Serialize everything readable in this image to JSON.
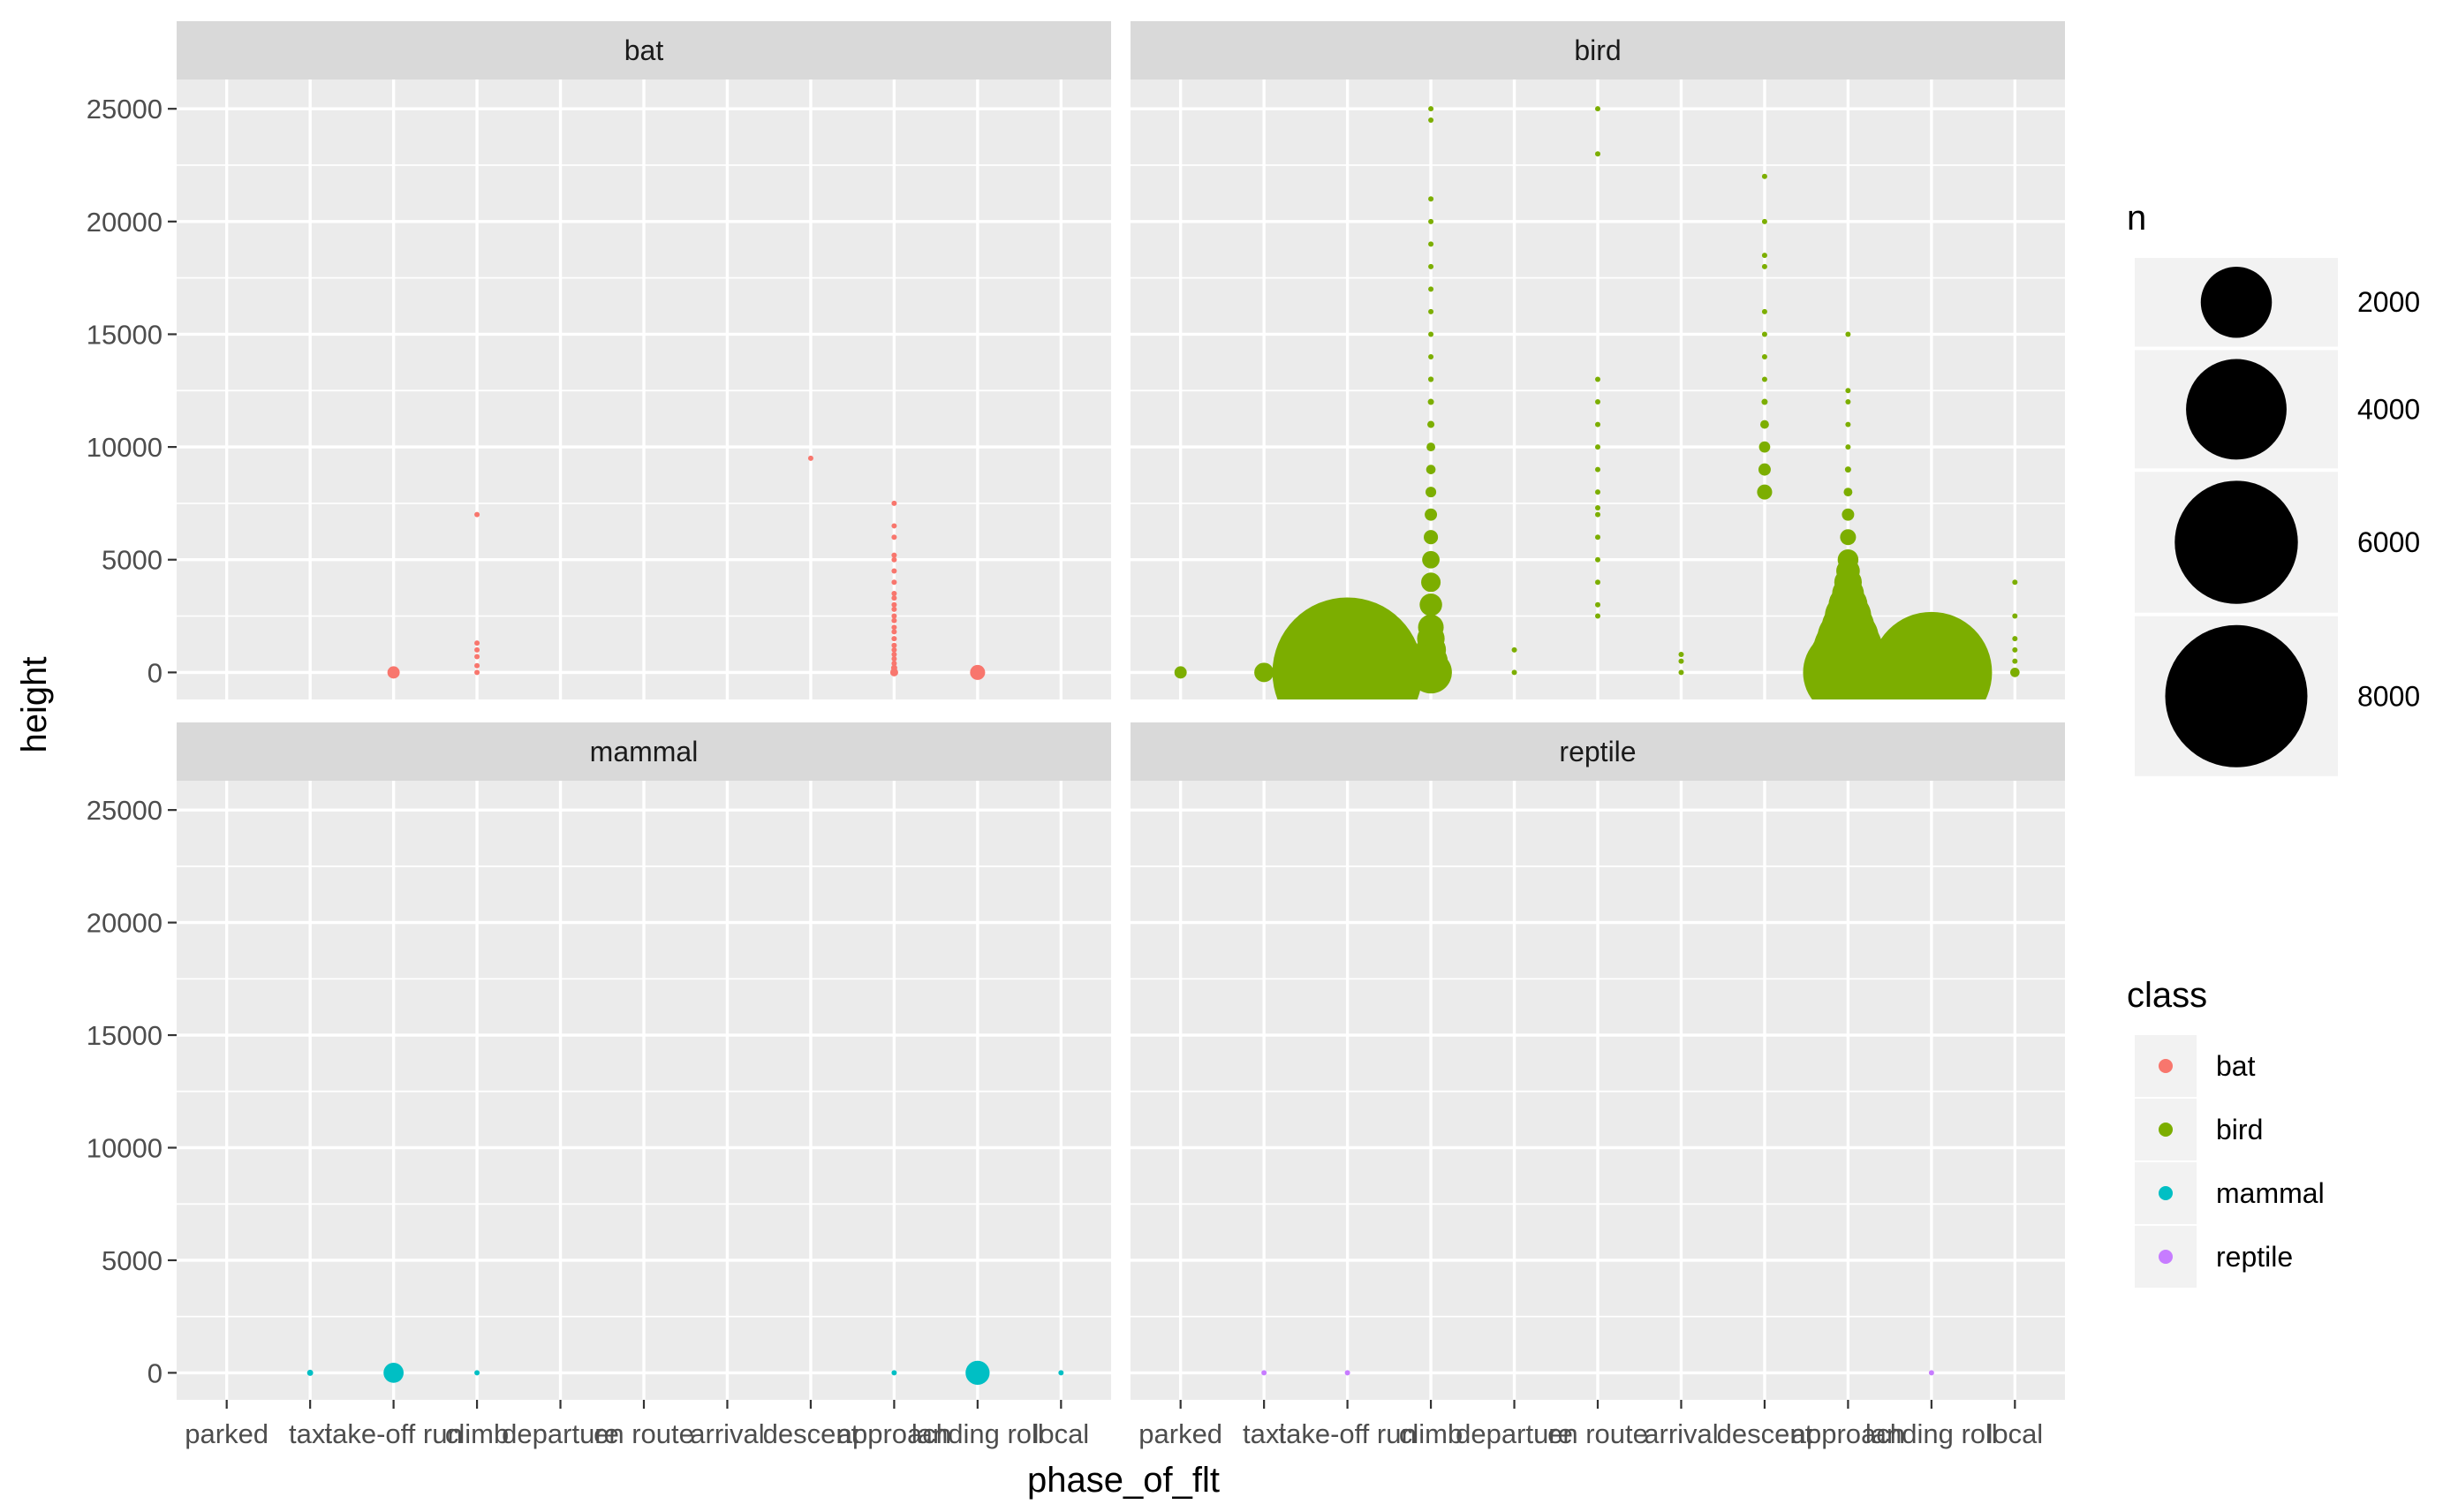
{
  "chart_data": {
    "type": "scatter",
    "facet_by": "class",
    "facets": [
      "bat",
      "bird",
      "mammal",
      "reptile"
    ],
    "xlabel": "phase_of_flt",
    "ylabel": "height",
    "x_categories": [
      "parked",
      "taxi",
      "take-off run",
      "climb",
      "departure",
      "en route",
      "arrival",
      "descent",
      "approach",
      "landing roll",
      "local"
    ],
    "x_tick_labels": [
      "parked",
      "taxi",
      "take-off run",
      "climb",
      "departure",
      "en route",
      "arrival",
      "descent",
      "approach",
      "landing roll",
      "local"
    ],
    "y_ticks": [
      0,
      5000,
      10000,
      15000,
      20000,
      25000
    ],
    "y_tick_labels": [
      "0",
      "5000",
      "10000",
      "15000",
      "20000",
      "25000"
    ],
    "ylim": [
      -1200,
      26300
    ],
    "grid": true,
    "legend_placement": "right",
    "size_legend": {
      "title": "n",
      "breaks": [
        2000,
        4000,
        6000,
        8000
      ],
      "labels": [
        "2000",
        "4000",
        "6000",
        "8000"
      ]
    },
    "color_legend": {
      "title": "class",
      "entries": [
        "bat",
        "bird",
        "mammal",
        "reptile"
      ]
    },
    "colors": {
      "bat": "#F8766D",
      "bird": "#7CAE00",
      "mammal": "#00BFC4",
      "reptile": "#C77CFF"
    },
    "series": [
      {
        "name": "bat",
        "points": [
          [
            "take-off run",
            0,
            60
          ],
          [
            "climb",
            0,
            3
          ],
          [
            "climb",
            300,
            2
          ],
          [
            "climb",
            700,
            2
          ],
          [
            "climb",
            1000,
            2
          ],
          [
            "climb",
            1300,
            2
          ],
          [
            "climb",
            7000,
            2
          ],
          [
            "descent",
            9500,
            2
          ],
          [
            "approach",
            0,
            25
          ],
          [
            "approach",
            200,
            15
          ],
          [
            "approach",
            400,
            10
          ],
          [
            "approach",
            600,
            8
          ],
          [
            "approach",
            800,
            6
          ],
          [
            "approach",
            1000,
            5
          ],
          [
            "approach",
            1200,
            4
          ],
          [
            "approach",
            1500,
            3
          ],
          [
            "approach",
            1800,
            3
          ],
          [
            "approach",
            2000,
            3
          ],
          [
            "approach",
            2300,
            2
          ],
          [
            "approach",
            2500,
            2
          ],
          [
            "approach",
            2800,
            2
          ],
          [
            "approach",
            3000,
            2
          ],
          [
            "approach",
            3300,
            2
          ],
          [
            "approach",
            3500,
            2
          ],
          [
            "approach",
            4000,
            2
          ],
          [
            "approach",
            4500,
            2
          ],
          [
            "approach",
            5000,
            2
          ],
          [
            "approach",
            5200,
            2
          ],
          [
            "approach",
            6000,
            2
          ],
          [
            "approach",
            6500,
            2
          ],
          [
            "approach",
            7500,
            2
          ],
          [
            "landing roll",
            0,
            90
          ]
        ]
      },
      {
        "name": "bird",
        "points": [
          [
            "parked",
            0,
            60
          ],
          [
            "taxi",
            0,
            150
          ],
          [
            "take-off run",
            0,
            8900
          ],
          [
            "climb",
            0,
            700
          ],
          [
            "climb",
            500,
            450
          ],
          [
            "climb",
            1000,
            360
          ],
          [
            "climb",
            1500,
            300
          ],
          [
            "climb",
            2000,
            260
          ],
          [
            "climb",
            3000,
            200
          ],
          [
            "climb",
            4000,
            150
          ],
          [
            "climb",
            5000,
            120
          ],
          [
            "climb",
            6000,
            80
          ],
          [
            "climb",
            7000,
            60
          ],
          [
            "climb",
            8000,
            45
          ],
          [
            "climb",
            9000,
            35
          ],
          [
            "climb",
            10000,
            30
          ],
          [
            "climb",
            11000,
            20
          ],
          [
            "climb",
            12000,
            15
          ],
          [
            "climb",
            13000,
            12
          ],
          [
            "climb",
            14000,
            8
          ],
          [
            "climb",
            15000,
            6
          ],
          [
            "climb",
            16000,
            5
          ],
          [
            "climb",
            17000,
            4
          ],
          [
            "climb",
            18000,
            3
          ],
          [
            "climb",
            19000,
            3
          ],
          [
            "climb",
            20000,
            3
          ],
          [
            "climb",
            21000,
            2
          ],
          [
            "climb",
            24500,
            2
          ],
          [
            "climb",
            25000,
            2
          ],
          [
            "departure",
            0,
            2
          ],
          [
            "departure",
            1000,
            2
          ],
          [
            "en route",
            2500,
            3
          ],
          [
            "en route",
            3000,
            3
          ],
          [
            "en route",
            4000,
            3
          ],
          [
            "en route",
            5000,
            3
          ],
          [
            "en route",
            6000,
            3
          ],
          [
            "en route",
            7000,
            3
          ],
          [
            "en route",
            7300,
            3
          ],
          [
            "en route",
            8000,
            3
          ],
          [
            "en route",
            9000,
            3
          ],
          [
            "en route",
            10000,
            5
          ],
          [
            "en route",
            11000,
            3
          ],
          [
            "en route",
            12000,
            3
          ],
          [
            "en route",
            13000,
            3
          ],
          [
            "en route",
            23000,
            2
          ],
          [
            "en route",
            25000,
            2
          ],
          [
            "arrival",
            0,
            4
          ],
          [
            "arrival",
            500,
            3
          ],
          [
            "arrival",
            800,
            3
          ],
          [
            "descent",
            8000,
            90
          ],
          [
            "descent",
            9000,
            60
          ],
          [
            "descent",
            10000,
            50
          ],
          [
            "descent",
            11000,
            30
          ],
          [
            "descent",
            12000,
            15
          ],
          [
            "descent",
            13000,
            10
          ],
          [
            "descent",
            14000,
            8
          ],
          [
            "descent",
            15000,
            6
          ],
          [
            "descent",
            16000,
            5
          ],
          [
            "descent",
            18000,
            3
          ],
          [
            "descent",
            18500,
            3
          ],
          [
            "descent",
            20000,
            3
          ],
          [
            "descent",
            22000,
            2
          ],
          [
            "approach",
            0,
            3200
          ],
          [
            "approach",
            500,
            2400
          ],
          [
            "approach",
            1000,
            1900
          ],
          [
            "approach",
            1500,
            1500
          ],
          [
            "approach",
            2000,
            1100
          ],
          [
            "approach",
            2500,
            850
          ],
          [
            "approach",
            3000,
            600
          ],
          [
            "approach",
            3500,
            400
          ],
          [
            "approach",
            4000,
            300
          ],
          [
            "approach",
            4500,
            220
          ],
          [
            "approach",
            5000,
            170
          ],
          [
            "approach",
            6000,
            100
          ],
          [
            "approach",
            7000,
            60
          ],
          [
            "approach",
            8000,
            30
          ],
          [
            "approach",
            9000,
            15
          ],
          [
            "approach",
            10000,
            8
          ],
          [
            "approach",
            11000,
            5
          ],
          [
            "approach",
            12000,
            4
          ],
          [
            "approach",
            12500,
            3
          ],
          [
            "approach",
            15000,
            2
          ],
          [
            "landing roll",
            0,
            5800
          ],
          [
            "local",
            0,
            35
          ],
          [
            "local",
            500,
            10
          ],
          [
            "local",
            1000,
            6
          ],
          [
            "local",
            1500,
            4
          ],
          [
            "local",
            2500,
            3
          ],
          [
            "local",
            4000,
            2
          ]
        ]
      },
      {
        "name": "mammal",
        "points": [
          [
            "taxi",
            0,
            15
          ],
          [
            "take-off run",
            0,
            160
          ],
          [
            "climb",
            0,
            4
          ],
          [
            "approach",
            0,
            6
          ],
          [
            "landing roll",
            0,
            230
          ],
          [
            "local",
            0,
            5
          ]
        ]
      },
      {
        "name": "reptile",
        "points": [
          [
            "taxi",
            0,
            4
          ],
          [
            "take-off run",
            0,
            6
          ],
          [
            "landing roll",
            0,
            7
          ]
        ]
      }
    ]
  }
}
